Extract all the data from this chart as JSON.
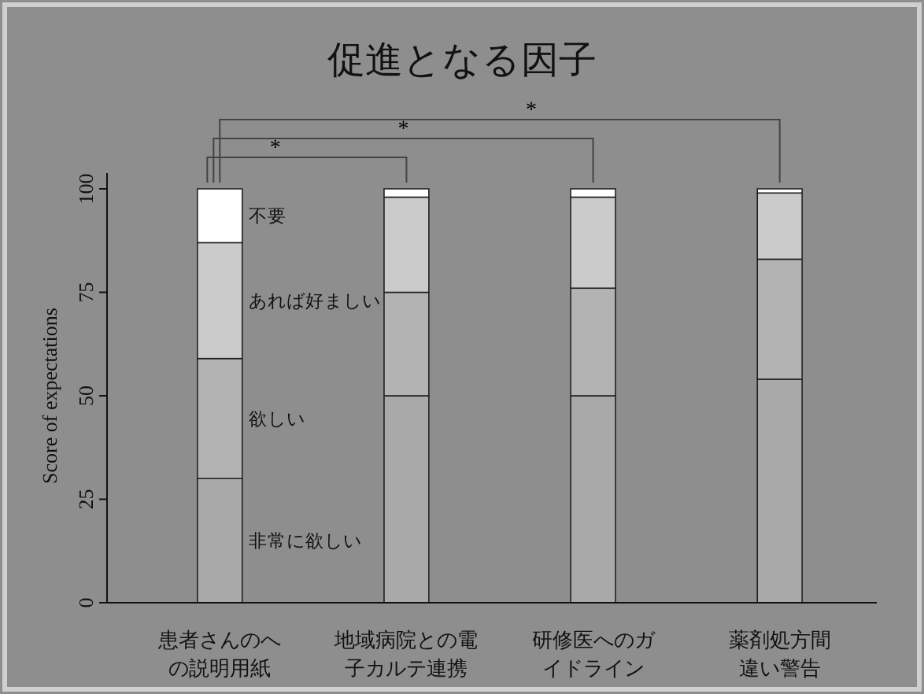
{
  "chart_data": {
    "type": "bar",
    "title": "促進となる因子",
    "ylabel": "Score of expectations",
    "stacked": true,
    "categories": [
      "患者さんのへの説明用紙",
      "地域病院との電子カルテ連携",
      "研修医へのガイドライン",
      "薬剤処方間違い警告"
    ],
    "series": [
      {
        "name": "非常に欲しい",
        "color": "#a9a9a9",
        "values": [
          30,
          50,
          50,
          54
        ]
      },
      {
        "name": "欲しい",
        "color": "#b3b3b3",
        "values": [
          29,
          25,
          26,
          29
        ]
      },
      {
        "name": "あれば好ましい",
        "color": "#cbcbcb",
        "values": [
          28,
          23,
          22,
          16
        ]
      },
      {
        "name": "不要",
        "color": "#ffffff",
        "values": [
          13,
          2,
          2,
          1
        ]
      }
    ],
    "ylim": [
      0,
      100
    ],
    "yticks": [
      0,
      25,
      50,
      75,
      100
    ],
    "grid": false,
    "annotations": [
      "*",
      "*",
      "*"
    ]
  }
}
